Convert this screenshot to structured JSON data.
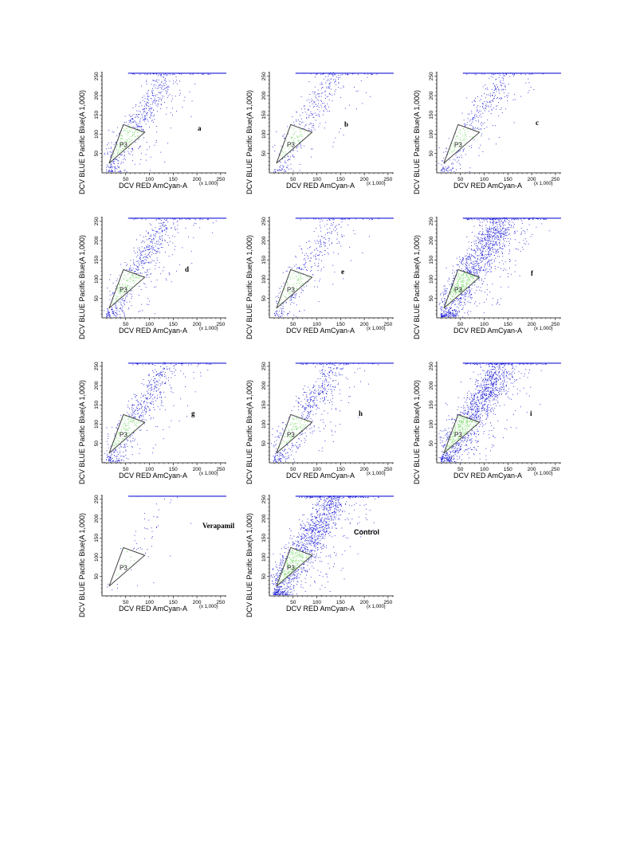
{
  "chart_data": [
    {
      "type": "scatter",
      "panel_label": "a",
      "xlabel": "DCV RED AmCyan-A",
      "ylabel": "DCV BLUE Pacific Blue(A 1,000)",
      "x_scale_note": "(x 1,000)",
      "x_ticks": [
        50,
        100,
        150,
        200,
        250
      ],
      "y_ticks": [
        50,
        100,
        150,
        200,
        250
      ],
      "xlim": [
        0,
        262
      ],
      "ylim": [
        0,
        262
      ],
      "gate": {
        "name": "P3",
        "vertices": [
          [
            15,
            25
          ],
          [
            45,
            125
          ],
          [
            90,
            105
          ]
        ]
      },
      "density": "medium",
      "series": [
        {
          "name": "P3",
          "color": "#7ddc6e"
        },
        {
          "color": "#1a1ad6"
        }
      ]
    },
    {
      "type": "scatter",
      "panel_label": "b",
      "xlabel": "DCV RED AmCyan-A",
      "ylabel": "DCV BLUE Pacific Blue(A 1,000)",
      "x_scale_note": "(x 1,000)",
      "x_ticks": [
        50,
        100,
        150,
        200,
        250
      ],
      "y_ticks": [
        50,
        100,
        150,
        200,
        250
      ],
      "xlim": [
        0,
        262
      ],
      "ylim": [
        0,
        262
      ],
      "gate": {
        "name": "P3",
        "vertices": [
          [
            15,
            25
          ],
          [
            45,
            125
          ],
          [
            90,
            105
          ]
        ]
      },
      "density": "low",
      "series": [
        {
          "name": "P3",
          "color": "#7ddc6e"
        },
        {
          "color": "#1a1ad6"
        }
      ]
    },
    {
      "type": "scatter",
      "panel_label": "c",
      "xlabel": "DCV RED AmCyan-A",
      "ylabel": "DCV BLUE Pacific Blue(A 1,000)",
      "x_scale_note": "(x 1,000)",
      "x_ticks": [
        50,
        100,
        150,
        200,
        250
      ],
      "y_ticks": [
        50,
        100,
        150,
        200,
        250
      ],
      "xlim": [
        0,
        262
      ],
      "ylim": [
        0,
        262
      ],
      "gate": {
        "name": "P3",
        "vertices": [
          [
            15,
            25
          ],
          [
            45,
            125
          ],
          [
            90,
            105
          ]
        ]
      },
      "density": "low",
      "series": [
        {
          "name": "P3",
          "color": "#7ddc6e"
        },
        {
          "color": "#1a1ad6"
        }
      ]
    },
    {
      "type": "scatter",
      "panel_label": "d",
      "xlabel": "DCV RED AmCyan-A",
      "ylabel": "DCV BLUE Pacific Blue(A 1,000)",
      "x_scale_note": "(x 1,000)",
      "x_ticks": [
        50,
        100,
        150,
        200,
        250
      ],
      "y_ticks": [
        50,
        100,
        150,
        200,
        250
      ],
      "xlim": [
        0,
        262
      ],
      "ylim": [
        0,
        262
      ],
      "gate": {
        "name": "P3",
        "vertices": [
          [
            15,
            25
          ],
          [
            45,
            125
          ],
          [
            90,
            105
          ]
        ]
      },
      "density": "medium",
      "series": [
        {
          "name": "P3",
          "color": "#7ddc6e"
        },
        {
          "color": "#1a1ad6"
        }
      ]
    },
    {
      "type": "scatter",
      "panel_label": "e",
      "xlabel": "DCV RED AmCyan-A",
      "ylabel": "DCV BLUE Pacific Blue(A 1,000)",
      "x_scale_note": "(x 1,000)",
      "x_ticks": [
        50,
        100,
        150,
        200,
        250
      ],
      "y_ticks": [
        50,
        100,
        150,
        200,
        250
      ],
      "xlim": [
        0,
        262
      ],
      "ylim": [
        0,
        262
      ],
      "gate": {
        "name": "P3",
        "vertices": [
          [
            15,
            25
          ],
          [
            45,
            125
          ],
          [
            90,
            105
          ]
        ]
      },
      "density": "low",
      "series": [
        {
          "name": "P3",
          "color": "#7ddc6e"
        },
        {
          "color": "#1a1ad6"
        }
      ]
    },
    {
      "type": "scatter",
      "panel_label": "f",
      "xlabel": "DCV RED AmCyan-A",
      "ylabel": "DCV BLUE Pacific Blue(A 1,000)",
      "x_scale_note": "(x 1,000)",
      "x_ticks": [
        50,
        100,
        150,
        200,
        250
      ],
      "y_ticks": [
        50,
        100,
        150,
        200,
        250
      ],
      "xlim": [
        0,
        262
      ],
      "ylim": [
        0,
        262
      ],
      "gate": {
        "name": "P3",
        "vertices": [
          [
            15,
            25
          ],
          [
            45,
            125
          ],
          [
            90,
            105
          ]
        ]
      },
      "density": "high",
      "series": [
        {
          "name": "P3",
          "color": "#7ddc6e"
        },
        {
          "color": "#1a1ad6"
        }
      ]
    },
    {
      "type": "scatter",
      "panel_label": "g",
      "xlabel": "DCV RED AmCyan-A",
      "ylabel": "DCV BLUE Pacific Blue(A 1,000)",
      "x_scale_note": "(x 1,000)",
      "x_ticks": [
        50,
        100,
        150,
        200,
        250
      ],
      "y_ticks": [
        50,
        100,
        150,
        200,
        250
      ],
      "xlim": [
        0,
        262
      ],
      "ylim": [
        0,
        262
      ],
      "gate": {
        "name": "P3",
        "vertices": [
          [
            15,
            25
          ],
          [
            45,
            125
          ],
          [
            90,
            105
          ]
        ]
      },
      "density": "medium",
      "series": [
        {
          "name": "P3",
          "color": "#7ddc6e"
        },
        {
          "color": "#1a1ad6"
        }
      ]
    },
    {
      "type": "scatter",
      "panel_label": "h",
      "xlabel": "DCV RED AmCyan-A",
      "ylabel": "DCV BLUE Pacific Blue(A 1,000)",
      "x_scale_note": "(x 1,000)",
      "x_ticks": [
        50,
        100,
        150,
        200,
        250
      ],
      "y_ticks": [
        50,
        100,
        150,
        200,
        250
      ],
      "xlim": [
        0,
        262
      ],
      "ylim": [
        0,
        262
      ],
      "gate": {
        "name": "P3",
        "vertices": [
          [
            15,
            25
          ],
          [
            45,
            125
          ],
          [
            90,
            105
          ]
        ]
      },
      "density": "medium",
      "series": [
        {
          "name": "P3",
          "color": "#7ddc6e"
        },
        {
          "color": "#1a1ad6"
        }
      ]
    },
    {
      "type": "scatter",
      "panel_label": "i",
      "xlabel": "DCV RED AmCyan-A",
      "ylabel": "DCV BLUE Pacific Blue(A 1,000)",
      "x_scale_note": "(x 1,000)",
      "x_ticks": [
        50,
        100,
        150,
        200,
        250
      ],
      "y_ticks": [
        50,
        100,
        150,
        200,
        250
      ],
      "xlim": [
        0,
        262
      ],
      "ylim": [
        0,
        262
      ],
      "gate": {
        "name": "P3",
        "vertices": [
          [
            15,
            25
          ],
          [
            45,
            125
          ],
          [
            90,
            105
          ]
        ]
      },
      "density": "high",
      "series": [
        {
          "name": "P3",
          "color": "#7ddc6e"
        },
        {
          "color": "#1a1ad6"
        }
      ]
    },
    {
      "type": "scatter",
      "panel_label": "Verapamil",
      "xlabel": "DCV RED AmCyan-A",
      "ylabel": "DCV BLUE Pacific Blue(A 1,000)",
      "x_scale_note": "(x 1,000)",
      "x_ticks": [
        50,
        100,
        150,
        200,
        250
      ],
      "y_ticks": [
        50,
        100,
        150,
        200,
        250
      ],
      "xlim": [
        0,
        262
      ],
      "ylim": [
        0,
        262
      ],
      "gate": {
        "name": "P3",
        "vertices": [
          [
            15,
            25
          ],
          [
            45,
            125
          ],
          [
            90,
            105
          ]
        ]
      },
      "density": "very-low",
      "series": [
        {
          "name": "P3",
          "color": "#7ddc6e"
        },
        {
          "color": "#1a1ad6"
        }
      ]
    },
    {
      "type": "scatter",
      "panel_label": "Control",
      "xlabel": "DCV RED AmCyan-A",
      "ylabel": "DCV BLUE Pacific Blue(A 1,000)",
      "x_scale_note": "(x 1,000)",
      "x_ticks": [
        50,
        100,
        150,
        200,
        250
      ],
      "y_ticks": [
        50,
        100,
        150,
        200,
        250
      ],
      "xlim": [
        0,
        262
      ],
      "ylim": [
        0,
        262
      ],
      "gate": {
        "name": "P3",
        "vertices": [
          [
            15,
            25
          ],
          [
            45,
            125
          ],
          [
            90,
            105
          ]
        ]
      },
      "density": "high",
      "series": [
        {
          "name": "P3",
          "color": "#7ddc6e"
        },
        {
          "color": "#1a1ad6"
        }
      ]
    }
  ]
}
